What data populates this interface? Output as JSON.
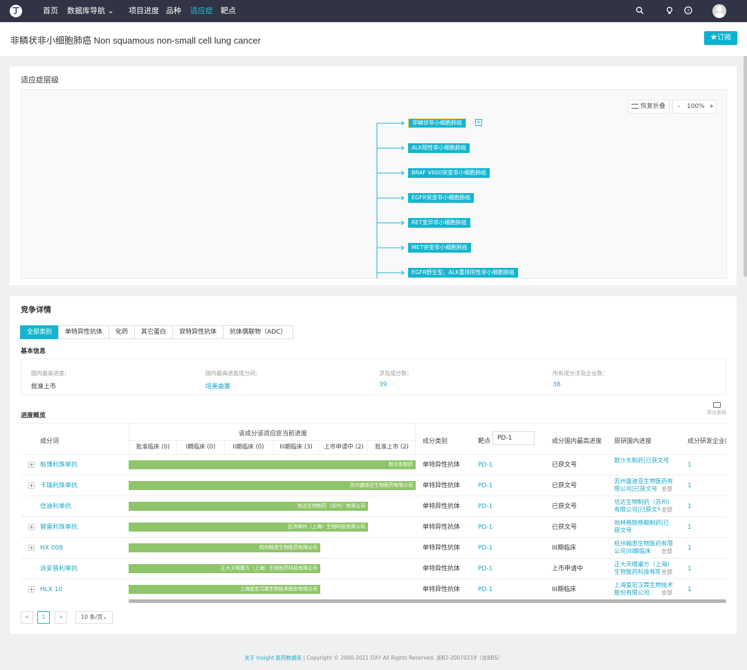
{
  "nav": {
    "logo": "丁",
    "items": [
      {
        "label": "首页",
        "active": false
      },
      {
        "label": "数据库导航 ⌄",
        "active": false
      },
      {
        "label": "项目进度",
        "active": false
      },
      {
        "label": "品种",
        "active": false
      },
      {
        "label": "适应症",
        "active": true
      },
      {
        "label": "靶点",
        "active": false
      }
    ],
    "icons": [
      "search-icon",
      "bulb-icon",
      "help-icon"
    ]
  },
  "header": {
    "title": "非鳞状非小细胞肺癌 Non squamous non-small cell lung cancer",
    "subscribe_label": "★订阅",
    "accent": "#0ab1d0"
  },
  "hierarchy": {
    "heading": "适应症层级",
    "restore_label": "恢复折叠",
    "zoom_minus": "-",
    "zoom_value": "100%",
    "zoom_plus": "+",
    "nodes": [
      "非鳞状非小细胞肺癌",
      "ALK阳性非小细胞肺癌",
      "BRAF V600突变非小细胞肺癌",
      "EGFR突变非小细胞肺癌",
      "RET变异非小细胞肺癌",
      "MET突变非小细胞肺癌",
      "EGFR野生型、ALK重排阴性非小细胞肺癌"
    ],
    "expand_symbol": "+"
  },
  "competition": {
    "heading": "竞争详情",
    "tabs": [
      "全部类别",
      "单特异性抗体",
      "化药",
      "其它蛋白",
      "双特异性抗体",
      "抗体偶联物（ADC）"
    ],
    "active_tab": 0,
    "basic_title": "基本信息",
    "basic": [
      {
        "key": "国内最高进度：",
        "value": "批准上市",
        "link": false
      },
      {
        "key": "国内最高进度成分词：",
        "value": "培美曲塞",
        "link": true
      },
      {
        "key": "涉及成分数：",
        "value": "39",
        "link": true
      },
      {
        "key": "所有成分涉及企业数：",
        "value": "38",
        "link": true
      }
    ],
    "progress_title": "进度概览",
    "export_label": "导出表格"
  },
  "table": {
    "col_name": "成分词",
    "col_progress": "该成分该适应症当前进度",
    "phases": [
      "批准临床 (0)",
      "I期临床 (0)",
      "II期临床 (0)",
      "III期临床 (3)",
      "上市申请中 (2)",
      "批准上市 (2)"
    ],
    "col_category": "成分类别",
    "col_target": "靶点",
    "target_filter": "PD-1",
    "col_status": "成分国内最高进度",
    "col_original": "原研国内进度",
    "col_count": "成分研发企业数",
    "all_label": "全部",
    "rows": [
      {
        "expand": "+",
        "name": "帕博利珠单抗",
        "bar_label": "默沙东制药",
        "bar_frac": 1.0,
        "category": "单特异性抗体",
        "target": "PD-1",
        "status": "已获文号",
        "original": "默沙东制药|已获文号",
        "count": "1",
        "has_all": false
      },
      {
        "expand": "+",
        "name": "卡瑞利珠单抗",
        "bar_label": "苏州盛迪亚生物医药有限公司",
        "bar_frac": 1.0,
        "category": "单特异性抗体",
        "target": "PD-1",
        "status": "已获文号",
        "original": "苏州盛迪亚生物医药有限公司|已获文号",
        "count": "1",
        "has_all": true
      },
      {
        "expand": "",
        "name": "信迪利单抗",
        "bar_label": "信达生物制药（苏州）有限公司",
        "bar_frac": 0.833,
        "category": "单特异性抗体",
        "target": "PD-1",
        "status": "已获文号",
        "original": "信达生物制药（苏州）有限公司|已获文号",
        "count": "1",
        "has_all": true
      },
      {
        "expand": "+",
        "name": "替雷利珠单抗",
        "bar_label": "百济神州（上海）生物科技有限公司",
        "bar_frac": 0.833,
        "category": "单特异性抗体",
        "target": "PD-1",
        "status": "已获文号",
        "original": "勃林格殷格翰制药|已获文号",
        "count": "1",
        "has_all": false
      },
      {
        "expand": "+",
        "name": "HX 008",
        "bar_label": "杭州翰思生物医药有限公司",
        "bar_frac": 0.667,
        "category": "单特异性抗体",
        "target": "PD-1",
        "status": "III期临床",
        "original": "杭州翰思生物医药有限公司|III期临床",
        "count": "1",
        "has_all": true
      },
      {
        "expand": "",
        "name": "派安普利单抗",
        "bar_label": "正大天晴康方（上海）生物医药科技有限公司",
        "bar_frac": 0.667,
        "category": "单特异性抗体",
        "target": "PD-1",
        "status": "上市申请中",
        "original": "正大天晴康方（上海）生物医药科技有限公司",
        "count": "1",
        "has_all": true
      },
      {
        "expand": "+",
        "name": "HLX 10",
        "bar_label": "上海复宏汉霖生物技术股份有限公司",
        "bar_frac": 0.667,
        "category": "单特异性抗体",
        "target": "PD-1",
        "status": "III期临床",
        "original": "上海复宏汉霖生物技术股份有限公司",
        "count": "1",
        "has_all": true
      }
    ]
  },
  "pagination": {
    "prev": "<",
    "current": "1",
    "next": ">",
    "page_size": "10 条/页⌄"
  },
  "footer": {
    "link_text": "关于 Insight 医药数据库",
    "copyright": " | Copyright © 2000-2021 DXY All Rights Reserved. 浙B2-20070219（含BBS）"
  }
}
